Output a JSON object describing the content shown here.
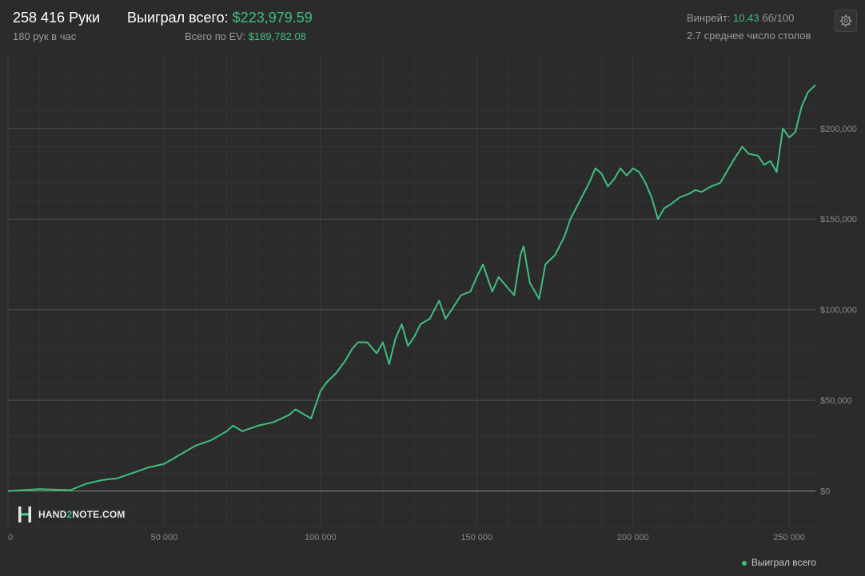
{
  "header": {
    "hands": "258 416 Руки",
    "hands_per_hour": "180 рук в час",
    "won_label": "Выиграл всего:",
    "won_value": "$223,979.59",
    "ev_label": "Всего по EV:",
    "ev_value": "$189,782.08",
    "winrate_label": "Винрейт:",
    "winrate_value": "10.43",
    "winrate_unit": "бб/100",
    "avg_tables": "2.7 среднее число столов"
  },
  "watermark": {
    "brand_pre": "HAND",
    "brand_two": "2",
    "brand_post": "NOTE.COM"
  },
  "legend": {
    "label": "Выиграл всего"
  },
  "colors": {
    "line": "#3fbf7f",
    "bg": "#2b2b2b",
    "grid": "#3a3a3a",
    "zero": "#8a8a8a"
  },
  "icons": {
    "settings": "gear-icon",
    "logo": "h2n-logo-icon"
  },
  "chart_data": {
    "type": "line",
    "title": "",
    "xlabel": "",
    "ylabel": "",
    "xlim": [
      0,
      258416
    ],
    "ylim": [
      -20000,
      240000
    ],
    "x_ticks": [
      0,
      50000,
      100000,
      150000,
      200000,
      250000
    ],
    "x_tick_labels": [
      "0",
      "50 000",
      "100 000",
      "150 000",
      "200 000",
      "250 000"
    ],
    "y_ticks": [
      0,
      50000,
      100000,
      150000,
      200000
    ],
    "y_tick_labels": [
      "$0",
      "$50,000",
      "$100,000",
      "$150,000",
      "$200,000"
    ],
    "grid": true,
    "legend_position": "bottom-right",
    "series": [
      {
        "name": "Выиграл всего",
        "color": "#3fbf7f",
        "x": [
          0,
          10000,
          20000,
          25000,
          30000,
          35000,
          40000,
          45000,
          50000,
          55000,
          60000,
          65000,
          70000,
          72000,
          75000,
          80000,
          85000,
          90000,
          92000,
          95000,
          97000,
          100000,
          102000,
          105000,
          108000,
          110000,
          112000,
          115000,
          118000,
          120000,
          122000,
          124000,
          126000,
          128000,
          130000,
          132000,
          135000,
          138000,
          140000,
          142000,
          145000,
          148000,
          150000,
          152000,
          155000,
          157000,
          160000,
          162000,
          164000,
          165000,
          167000,
          170000,
          172000,
          175000,
          178000,
          180000,
          183000,
          186000,
          188000,
          190000,
          192000,
          194000,
          196000,
          198000,
          200000,
          202000,
          204000,
          206000,
          208000,
          210000,
          212000,
          215000,
          218000,
          220000,
          222000,
          225000,
          228000,
          230000,
          232000,
          235000,
          237000,
          240000,
          242000,
          244000,
          246000,
          248000,
          250000,
          252000,
          254000,
          256000,
          258416
        ],
        "y": [
          0,
          1000,
          500,
          4000,
          6000,
          7000,
          10000,
          13000,
          15000,
          20000,
          25000,
          28000,
          33000,
          36000,
          33000,
          36000,
          38000,
          42000,
          45000,
          42000,
          40000,
          55000,
          60000,
          65000,
          72000,
          78000,
          82000,
          82000,
          76000,
          82000,
          70000,
          84000,
          92000,
          80000,
          85000,
          92000,
          95000,
          105000,
          95000,
          100000,
          108000,
          110000,
          118000,
          125000,
          110000,
          118000,
          112000,
          108000,
          130000,
          135000,
          115000,
          106000,
          125000,
          130000,
          140000,
          150000,
          160000,
          170000,
          178000,
          175000,
          168000,
          172000,
          178000,
          174000,
          178000,
          176000,
          170000,
          162000,
          150000,
          156000,
          158000,
          162000,
          164000,
          166000,
          165000,
          168000,
          170000,
          176000,
          182000,
          190000,
          186000,
          185000,
          180000,
          182000,
          176000,
          200000,
          195000,
          198000,
          212000,
          220000,
          223980
        ]
      }
    ]
  }
}
